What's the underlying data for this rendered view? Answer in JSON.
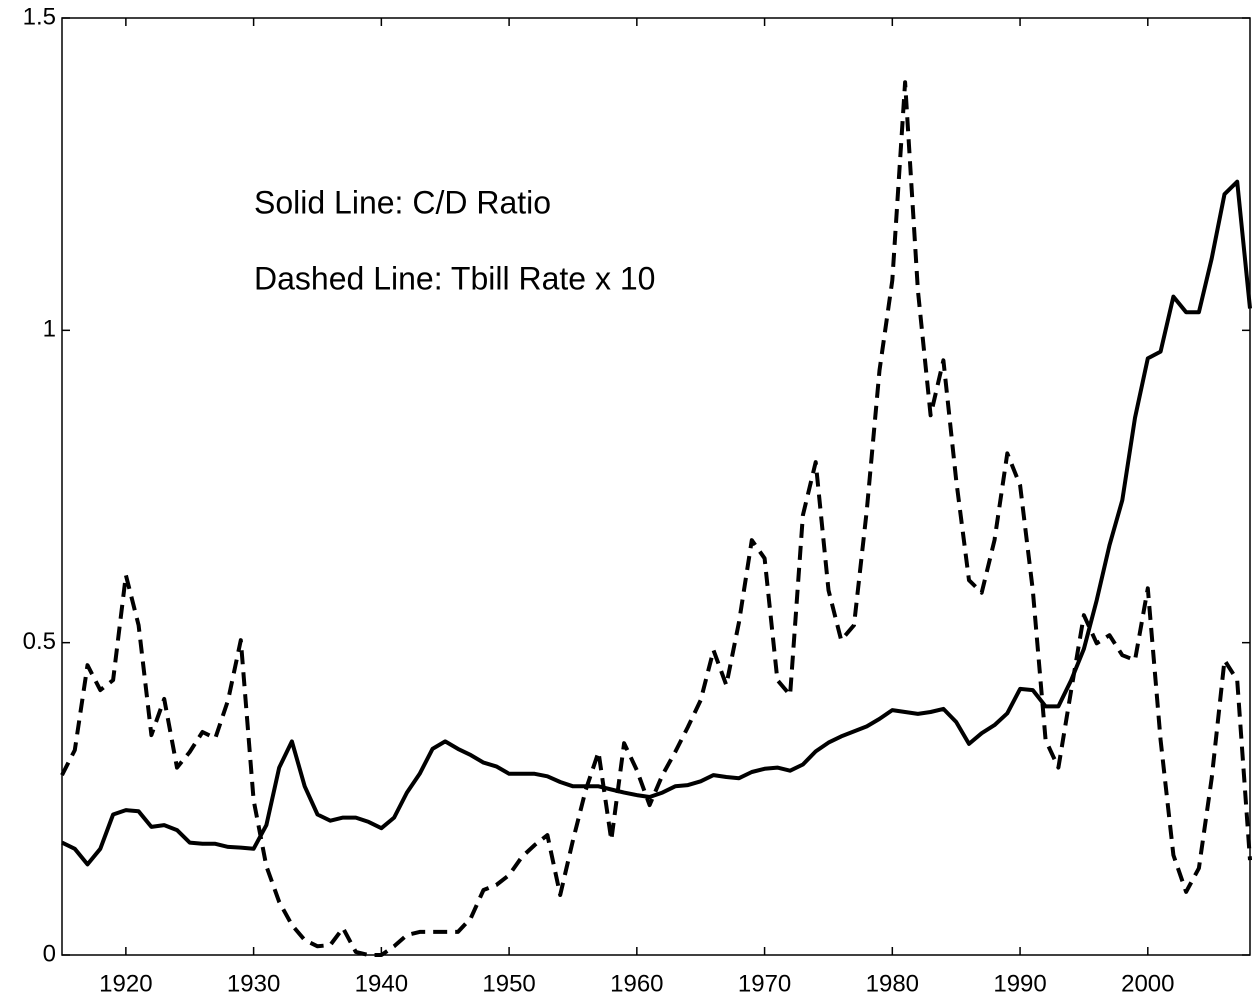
{
  "chart_data": {
    "type": "line",
    "annotations": [
      "Solid Line: C/D Ratio",
      "Dashed Line: Tbill Rate x 10"
    ],
    "x": [
      1915,
      1916,
      1917,
      1918,
      1919,
      1920,
      1921,
      1922,
      1923,
      1924,
      1925,
      1926,
      1927,
      1928,
      1929,
      1930,
      1931,
      1932,
      1933,
      1934,
      1935,
      1936,
      1937,
      1938,
      1939,
      1940,
      1941,
      1942,
      1943,
      1944,
      1945,
      1946,
      1947,
      1948,
      1949,
      1950,
      1951,
      1952,
      1953,
      1954,
      1955,
      1956,
      1957,
      1958,
      1959,
      1960,
      1961,
      1962,
      1963,
      1964,
      1965,
      1966,
      1967,
      1968,
      1969,
      1970,
      1971,
      1972,
      1973,
      1974,
      1975,
      1976,
      1977,
      1978,
      1979,
      1980,
      1981,
      1982,
      1983,
      1984,
      1985,
      1986,
      1987,
      1988,
      1989,
      1990,
      1991,
      1992,
      1993,
      1994,
      1995,
      1996,
      1997,
      1998,
      1999,
      2000,
      2001,
      2002,
      2003,
      2004,
      2005,
      2006,
      2007,
      2008
    ],
    "series": [
      {
        "color": "#000000",
        "dash": false,
        "values": [
          0.18,
          0.17,
          0.145,
          0.17,
          0.225,
          0.232,
          0.23,
          0.205,
          0.208,
          0.2,
          0.18,
          0.178,
          0.178,
          0.173,
          0.172,
          0.17,
          0.208,
          0.3,
          0.342,
          0.27,
          0.225,
          0.215,
          0.22,
          0.22,
          0.213,
          0.203,
          0.22,
          0.26,
          0.29,
          0.33,
          0.342,
          0.33,
          0.32,
          0.308,
          0.302,
          0.29,
          0.29,
          0.29,
          0.286,
          0.277,
          0.27,
          0.27,
          0.27,
          0.265,
          0.26,
          0.256,
          0.253,
          0.26,
          0.27,
          0.272,
          0.278,
          0.288,
          0.285,
          0.283,
          0.293,
          0.298,
          0.3,
          0.295,
          0.305,
          0.326,
          0.34,
          0.35,
          0.358,
          0.366,
          0.378,
          0.392,
          0.389,
          0.386,
          0.389,
          0.394,
          0.373,
          0.338,
          0.355,
          0.368,
          0.387,
          0.426,
          0.424,
          0.398,
          0.398,
          0.44,
          0.49,
          0.568,
          0.656,
          0.728,
          0.86,
          0.955,
          0.966,
          1.054,
          1.029,
          1.029,
          1.115,
          1.218,
          1.238,
          1.035
        ]
      },
      {
        "color": "#000000",
        "dash": true,
        "values": [
          0.288,
          0.328,
          0.464,
          0.424,
          0.44,
          0.608,
          0.528,
          0.352,
          0.41,
          0.3,
          0.325,
          0.357,
          0.347,
          0.408,
          0.504,
          0.248,
          0.142,
          0.085,
          0.048,
          0.024,
          0.014,
          0.016,
          0.043,
          0.005,
          0.0,
          0.0,
          0.014,
          0.032,
          0.037,
          0.037,
          0.037,
          0.037,
          0.059,
          0.104,
          0.112,
          0.128,
          0.157,
          0.176,
          0.192,
          0.096,
          0.184,
          0.264,
          0.325,
          0.184,
          0.339,
          0.296,
          0.24,
          0.288,
          0.325,
          0.365,
          0.408,
          0.488,
          0.432,
          0.533,
          0.664,
          0.635,
          0.44,
          0.416,
          0.704,
          0.789,
          0.584,
          0.504,
          0.528,
          0.712,
          0.936,
          1.08,
          1.397,
          1.064,
          0.864,
          0.952,
          0.76,
          0.6,
          0.58,
          0.664,
          0.803,
          0.752,
          0.584,
          0.344,
          0.3,
          0.424,
          0.544,
          0.499,
          0.512,
          0.48,
          0.472,
          0.587,
          0.344,
          0.16,
          0.101,
          0.139,
          0.283,
          0.472,
          0.44,
          0.152
        ]
      }
    ],
    "xlim": [
      1915,
      2008
    ],
    "ylim": [
      0,
      1.5
    ],
    "xticks": [
      1920,
      1930,
      1940,
      1950,
      1960,
      1970,
      1980,
      1990,
      2000
    ],
    "yticks": [
      0,
      0.5,
      1,
      1.5
    ]
  }
}
